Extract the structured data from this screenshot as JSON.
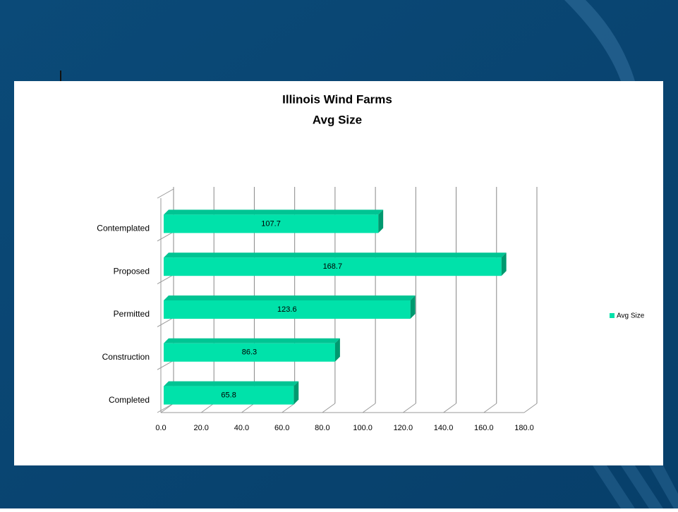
{
  "chart_data": {
    "type": "bar",
    "orientation": "horizontal",
    "title": [
      "Illinois Wind Farms",
      "Avg Size"
    ],
    "categories": [
      "Contemplated",
      "Proposed",
      "Permitted",
      "Construction",
      "Completed"
    ],
    "series": [
      {
        "name": "Avg Size",
        "color": "#00e2aa",
        "values": [
          107.7,
          168.7,
          123.6,
          86.3,
          65.8
        ]
      }
    ],
    "xlim": [
      0,
      180
    ],
    "xticks": [
      {
        "value": 0,
        "label": "0.0"
      },
      {
        "value": 20,
        "label": "20.0"
      },
      {
        "value": 40,
        "label": "40.0"
      },
      {
        "value": 60,
        "label": "60.0"
      },
      {
        "value": 80,
        "label": "80.0"
      },
      {
        "value": 100,
        "label": "100.0"
      },
      {
        "value": 120,
        "label": "120.0"
      },
      {
        "value": 140,
        "label": "140.0"
      },
      {
        "value": 160,
        "label": "160.0"
      },
      {
        "value": 180,
        "label": "180.0"
      }
    ],
    "grid": true,
    "legend": "right"
  }
}
